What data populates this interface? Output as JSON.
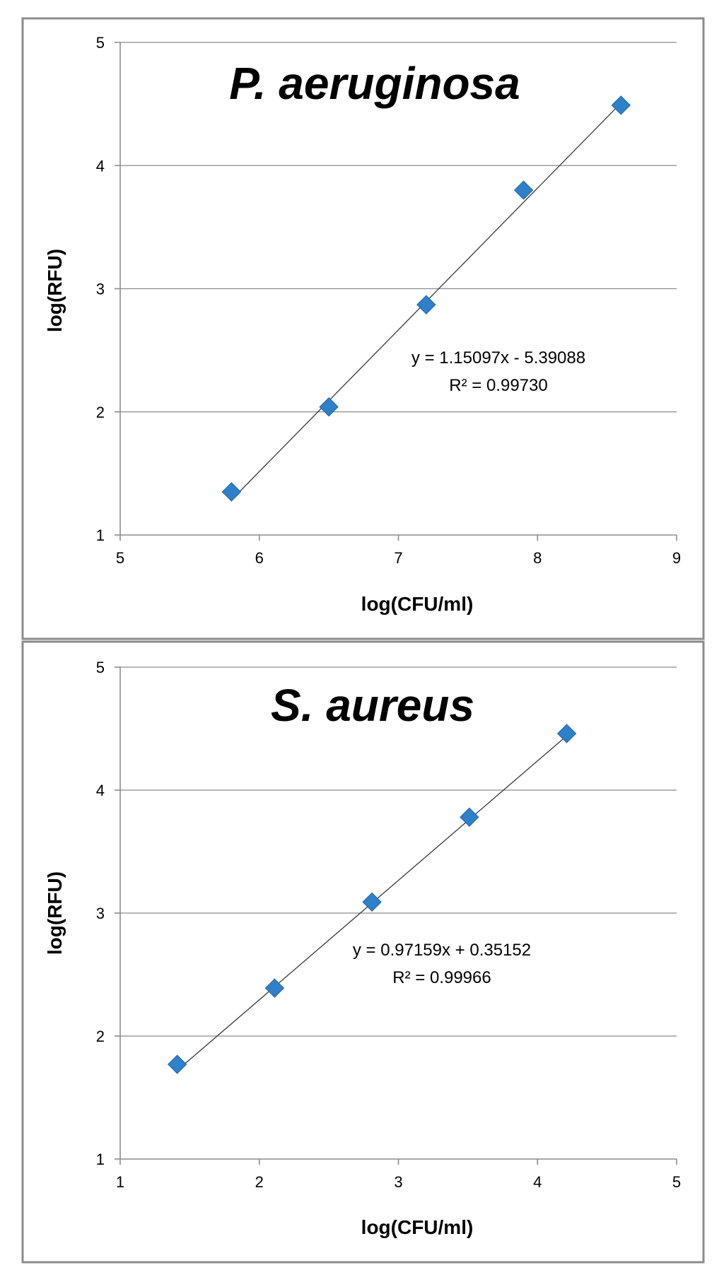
{
  "chart_data": [
    {
      "type": "scatter",
      "title": "P. aeruginosa",
      "xlabel": "log(CFU/ml)",
      "ylabel": "log(RFU)",
      "xlim": [
        5,
        9
      ],
      "ylim": [
        1,
        5
      ],
      "x_ticks": [
        "5",
        "6",
        "7",
        "8",
        "9"
      ],
      "y_ticks": [
        "1",
        "2",
        "3",
        "4",
        "5"
      ],
      "grid": "horizontal",
      "marker": "diamond",
      "marker_color": "#2e80c8",
      "series": [
        {
          "x": [
            5.8,
            6.5,
            7.2,
            7.9,
            8.6
          ],
          "y": [
            1.35,
            2.04,
            2.87,
            3.8,
            4.49
          ]
        }
      ],
      "trendline": {
        "slope": 1.15097,
        "intercept": -5.39088
      },
      "annotations": [
        "y = 1.15097x - 5.39088",
        "R² = 0.99730"
      ]
    },
    {
      "type": "scatter",
      "title": "S. aureus",
      "xlabel": "log(CFU/ml)",
      "ylabel": "log(RFU)",
      "xlim": [
        1,
        5
      ],
      "ylim": [
        1,
        5
      ],
      "x_ticks": [
        "1",
        "2",
        "3",
        "4",
        "5"
      ],
      "y_ticks": [
        "1",
        "2",
        "3",
        "4",
        "5"
      ],
      "grid": "horizontal",
      "marker": "diamond",
      "marker_color": "#2e80c8",
      "series": [
        {
          "x": [
            1.41,
            2.11,
            2.81,
            3.51,
            4.21
          ],
          "y": [
            1.77,
            2.39,
            3.09,
            3.78,
            4.46
          ]
        }
      ],
      "trendline": {
        "slope": 0.97159,
        "intercept": 0.35152
      },
      "annotations": [
        "y = 0.97159x + 0.35152",
        "R² = 0.99966"
      ]
    }
  ]
}
